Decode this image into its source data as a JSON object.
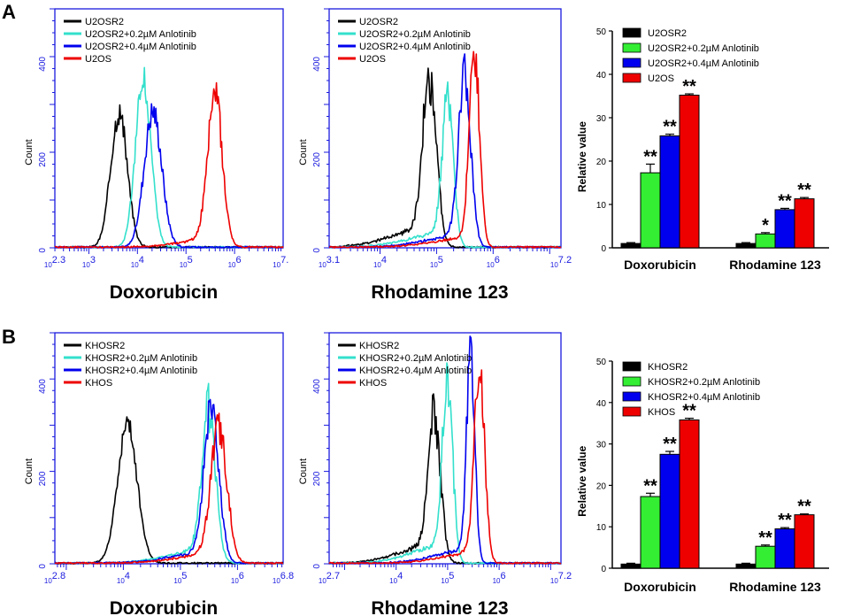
{
  "panels": [
    {
      "letter": "A",
      "letter_name": "panel-a-letter"
    },
    {
      "letter": "B",
      "letter_name": "panel-b-letter"
    }
  ],
  "chart_data": [
    {
      "id": "A-hist-dox",
      "type": "line",
      "panel": "A",
      "title": "Doxorubicin",
      "ylabel": "Count",
      "ylim": [
        0,
        500
      ],
      "yticks": [
        0,
        200,
        400
      ],
      "xlim_log": [
        2.3,
        7.0
      ],
      "xticklabels": [
        {
          "base": "10",
          "exp": "2.3",
          "pos": 2.3
        },
        {
          "base": "10",
          "exp": "3",
          "pos": 3
        },
        {
          "base": "10",
          "exp": "4",
          "pos": 4
        },
        {
          "base": "10",
          "exp": "5",
          "pos": 5
        },
        {
          "base": "10",
          "exp": "6",
          "pos": 6
        },
        {
          "base": "10",
          "exp": "7.",
          "pos": 6.95
        }
      ],
      "legend": [
        "U2OSR2",
        "U2OSR2+0.2µM Anlotinib",
        "U2OSR2+0.4µM Anlotinib",
        "U2OS"
      ],
      "series": [
        {
          "name": "U2OSR2",
          "color": "#000000",
          "mu": 3.62,
          "sigma": 0.17,
          "peak": 283,
          "noise": 0.55
        },
        {
          "name": "U2OSR2+0.2µM Anlotinib",
          "color": "#33e0cc",
          "mu": 4.12,
          "sigma": 0.16,
          "peak": 350,
          "noise": 0.5
        },
        {
          "name": "U2OSR2+0.4µM Anlotinib",
          "color": "#0000ee",
          "mu": 4.32,
          "sigma": 0.18,
          "peak": 285,
          "noise": 0.6
        },
        {
          "name": "U2OS",
          "color": "#ee0000",
          "mu": 5.6,
          "sigma": 0.15,
          "peak": 315,
          "noise": 0.7,
          "tail": 18
        }
      ]
    },
    {
      "id": "A-hist-rho",
      "type": "line",
      "panel": "A",
      "title": "Rhodamine 123",
      "ylabel": "Count",
      "ylim": [
        0,
        500
      ],
      "yticks": [
        0,
        200,
        400
      ],
      "xlim_log": [
        3.1,
        7.2
      ],
      "xticklabels": [
        {
          "base": "10",
          "exp": "3.1",
          "pos": 3.1
        },
        {
          "base": "10",
          "exp": "4",
          "pos": 4
        },
        {
          "base": "10",
          "exp": "5",
          "pos": 5
        },
        {
          "base": "10",
          "exp": "6",
          "pos": 6
        },
        {
          "base": "10",
          "exp": "7.2",
          "pos": 7.2
        }
      ],
      "legend": [
        "U2OSR2",
        "U2OSR2+0.2µM Anlotinib",
        "U2OSR2+0.4µM Anlotinib",
        "U2OS"
      ],
      "series": [
        {
          "name": "U2OSR2",
          "color": "#000000",
          "mu": 4.88,
          "sigma": 0.12,
          "peak": 340,
          "noise": 0.8,
          "tail": 40
        },
        {
          "name": "U2OSR2+0.2µM Anlotinib",
          "color": "#33e0cc",
          "mu": 5.2,
          "sigma": 0.1,
          "peak": 290,
          "noise": 0.8,
          "tail": 30
        },
        {
          "name": "U2OSR2+0.4µM Anlotinib",
          "color": "#0000ee",
          "mu": 5.5,
          "sigma": 0.11,
          "peak": 335,
          "noise": 0.7,
          "tail": 25
        },
        {
          "name": "U2OS",
          "color": "#ee0000",
          "mu": 5.67,
          "sigma": 0.09,
          "peak": 405,
          "noise": 0.7,
          "tail": 20
        }
      ]
    },
    {
      "id": "A-bar",
      "type": "bar",
      "panel": "A",
      "categories": [
        "Doxorubicin",
        "Rhodamine 123"
      ],
      "ylabel": "Relative value",
      "ylim": [
        0,
        50
      ],
      "yticks": [
        0,
        10,
        20,
        30,
        40,
        50
      ],
      "series": [
        {
          "name": "U2OSR2",
          "color": "#000000",
          "values": [
            1.0,
            1.0
          ],
          "errors": [
            0.2,
            0.2
          ],
          "stars": [
            "",
            ""
          ]
        },
        {
          "name": "U2OSR2+0.2µM Anlotinib",
          "color": "#33ee33",
          "values": [
            17.3,
            3.2
          ],
          "errors": [
            2.0,
            0.3
          ],
          "stars": [
            "**",
            "*"
          ]
        },
        {
          "name": "U2OSR2+0.4µM Anlotinib",
          "color": "#0000ee",
          "values": [
            25.8,
            8.8
          ],
          "errors": [
            0.4,
            0.3
          ],
          "stars": [
            "**",
            "**"
          ]
        },
        {
          "name": "U2OS",
          "color": "#ee0000",
          "values": [
            35.2,
            11.3
          ],
          "errors": [
            0.3,
            0.3
          ],
          "stars": [
            "**",
            "**"
          ]
        }
      ]
    },
    {
      "id": "B-hist-dox",
      "type": "line",
      "panel": "B",
      "title": "Doxorubicin",
      "ylabel": "Count",
      "ylim": [
        0,
        500
      ],
      "yticks": [
        0,
        200,
        400
      ],
      "xlim_log": [
        2.8,
        6.8
      ],
      "xticklabels": [
        {
          "base": "10",
          "exp": "2.8",
          "pos": 2.8
        },
        {
          "base": "10",
          "exp": "4",
          "pos": 4
        },
        {
          "base": "10",
          "exp": "5",
          "pos": 5
        },
        {
          "base": "10",
          "exp": "6",
          "pos": 6
        },
        {
          "base": "10",
          "exp": "6.8",
          "pos": 6.8
        }
      ],
      "legend": [
        "KHOSR2",
        "KHOSR2+0.2µM Anlotinib",
        "KHOSR2+0.4µM Anlotinib",
        "KHOS"
      ],
      "series": [
        {
          "name": "KHOSR2",
          "color": "#000000",
          "mu": 4.07,
          "sigma": 0.17,
          "peak": 300,
          "noise": 0.5
        },
        {
          "name": "KHOSR2+0.2µM Anlotinib",
          "color": "#33e0cc",
          "mu": 5.5,
          "sigma": 0.12,
          "peak": 320,
          "noise": 0.7,
          "tail": 30
        },
        {
          "name": "KHOSR2+0.4µM Anlotinib",
          "color": "#0000ee",
          "mu": 5.55,
          "sigma": 0.13,
          "peak": 320,
          "noise": 0.7,
          "tail": 25
        },
        {
          "name": "KHOS",
          "color": "#ee0000",
          "mu": 5.68,
          "sigma": 0.14,
          "peak": 285,
          "noise": 0.7,
          "tail": 22
        }
      ]
    },
    {
      "id": "B-hist-rho",
      "type": "line",
      "panel": "B",
      "title": "Rhodamine 123",
      "ylabel": "Count",
      "ylim": [
        0,
        500
      ],
      "yticks": [
        0,
        200,
        400
      ],
      "xlim_log": [
        2.7,
        7.2
      ],
      "xticklabels": [
        {
          "base": "10",
          "exp": "2.7",
          "pos": 2.7
        },
        {
          "base": "10",
          "exp": "4",
          "pos": 4
        },
        {
          "base": "10",
          "exp": "5",
          "pos": 5
        },
        {
          "base": "10",
          "exp": "6",
          "pos": 6
        },
        {
          "base": "10",
          "exp": "7.2",
          "pos": 7.2
        }
      ],
      "legend": [
        "KHOSR2",
        "KHOSR2+0.2µM Anlotinib",
        "KHOSR2+0.4µM Anlotinib",
        "KHOS"
      ],
      "series": [
        {
          "name": "KHOSR2",
          "color": "#000000",
          "mu": 4.75,
          "sigma": 0.12,
          "peak": 300,
          "noise": 0.8,
          "tail": 40
        },
        {
          "name": "KHOSR2+0.2µM Anlotinib",
          "color": "#33e0cc",
          "mu": 5.0,
          "sigma": 0.1,
          "peak": 375,
          "noise": 0.8,
          "tail": 40
        },
        {
          "name": "KHOSR2+0.4µM Anlotinib",
          "color": "#0000ee",
          "mu": 5.45,
          "sigma": 0.08,
          "peak": 440,
          "noise": 0.7,
          "tail": 30
        },
        {
          "name": "KHOS",
          "color": "#ee0000",
          "mu": 5.62,
          "sigma": 0.1,
          "peak": 410,
          "noise": 0.7,
          "tail": 25
        }
      ]
    },
    {
      "id": "B-bar",
      "type": "bar",
      "panel": "B",
      "categories": [
        "Doxorubicin",
        "Rhodamine 123"
      ],
      "ylabel": "Relative value",
      "ylim": [
        0,
        50
      ],
      "yticks": [
        0,
        10,
        20,
        30,
        40,
        50
      ],
      "series": [
        {
          "name": "KHOSR2",
          "color": "#000000",
          "values": [
            1.0,
            1.0
          ],
          "errors": [
            0.2,
            0.2
          ],
          "stars": [
            "",
            ""
          ]
        },
        {
          "name": "KHOSR2+0.2µM Anlotinib",
          "color": "#33ee33",
          "values": [
            17.3,
            5.3
          ],
          "errors": [
            0.8,
            0.3
          ],
          "stars": [
            "**",
            "**"
          ]
        },
        {
          "name": "KHOSR2+0.4µM Anlotinib",
          "color": "#0000ee",
          "values": [
            27.5,
            9.5
          ],
          "errors": [
            0.7,
            0.3
          ],
          "stars": [
            "**",
            "**"
          ]
        },
        {
          "name": "KHOS",
          "color": "#ee0000",
          "values": [
            35.8,
            12.9
          ],
          "errors": [
            0.4,
            0.2
          ],
          "stars": [
            "**",
            "**"
          ]
        }
      ]
    }
  ]
}
